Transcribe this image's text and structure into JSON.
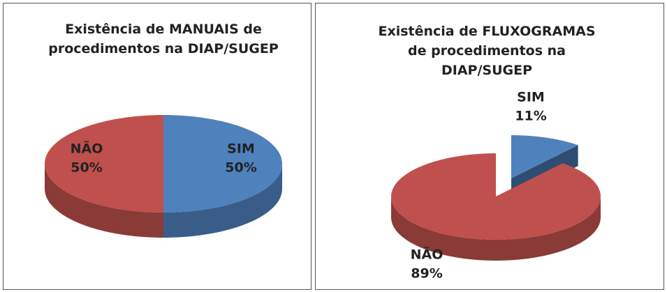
{
  "chart_data": [
    {
      "type": "pie",
      "title": "Existência de MANUAIS de procedimentos na DIAP/SUGEP",
      "categories": [
        "SIM",
        "NÃO"
      ],
      "values": [
        50,
        50
      ],
      "value_labels": [
        "50%",
        "50%"
      ],
      "colors": [
        "#4f81bd",
        "#c0504d"
      ]
    },
    {
      "type": "pie",
      "title": "Existência de FLUXOGRAMAS de procedimentos na DIAP/SUGEP",
      "categories": [
        "SIM",
        "NÃO"
      ],
      "values": [
        11,
        89
      ],
      "value_labels": [
        "11%",
        "89%"
      ],
      "colors": [
        "#4f81bd",
        "#c0504d"
      ]
    }
  ]
}
